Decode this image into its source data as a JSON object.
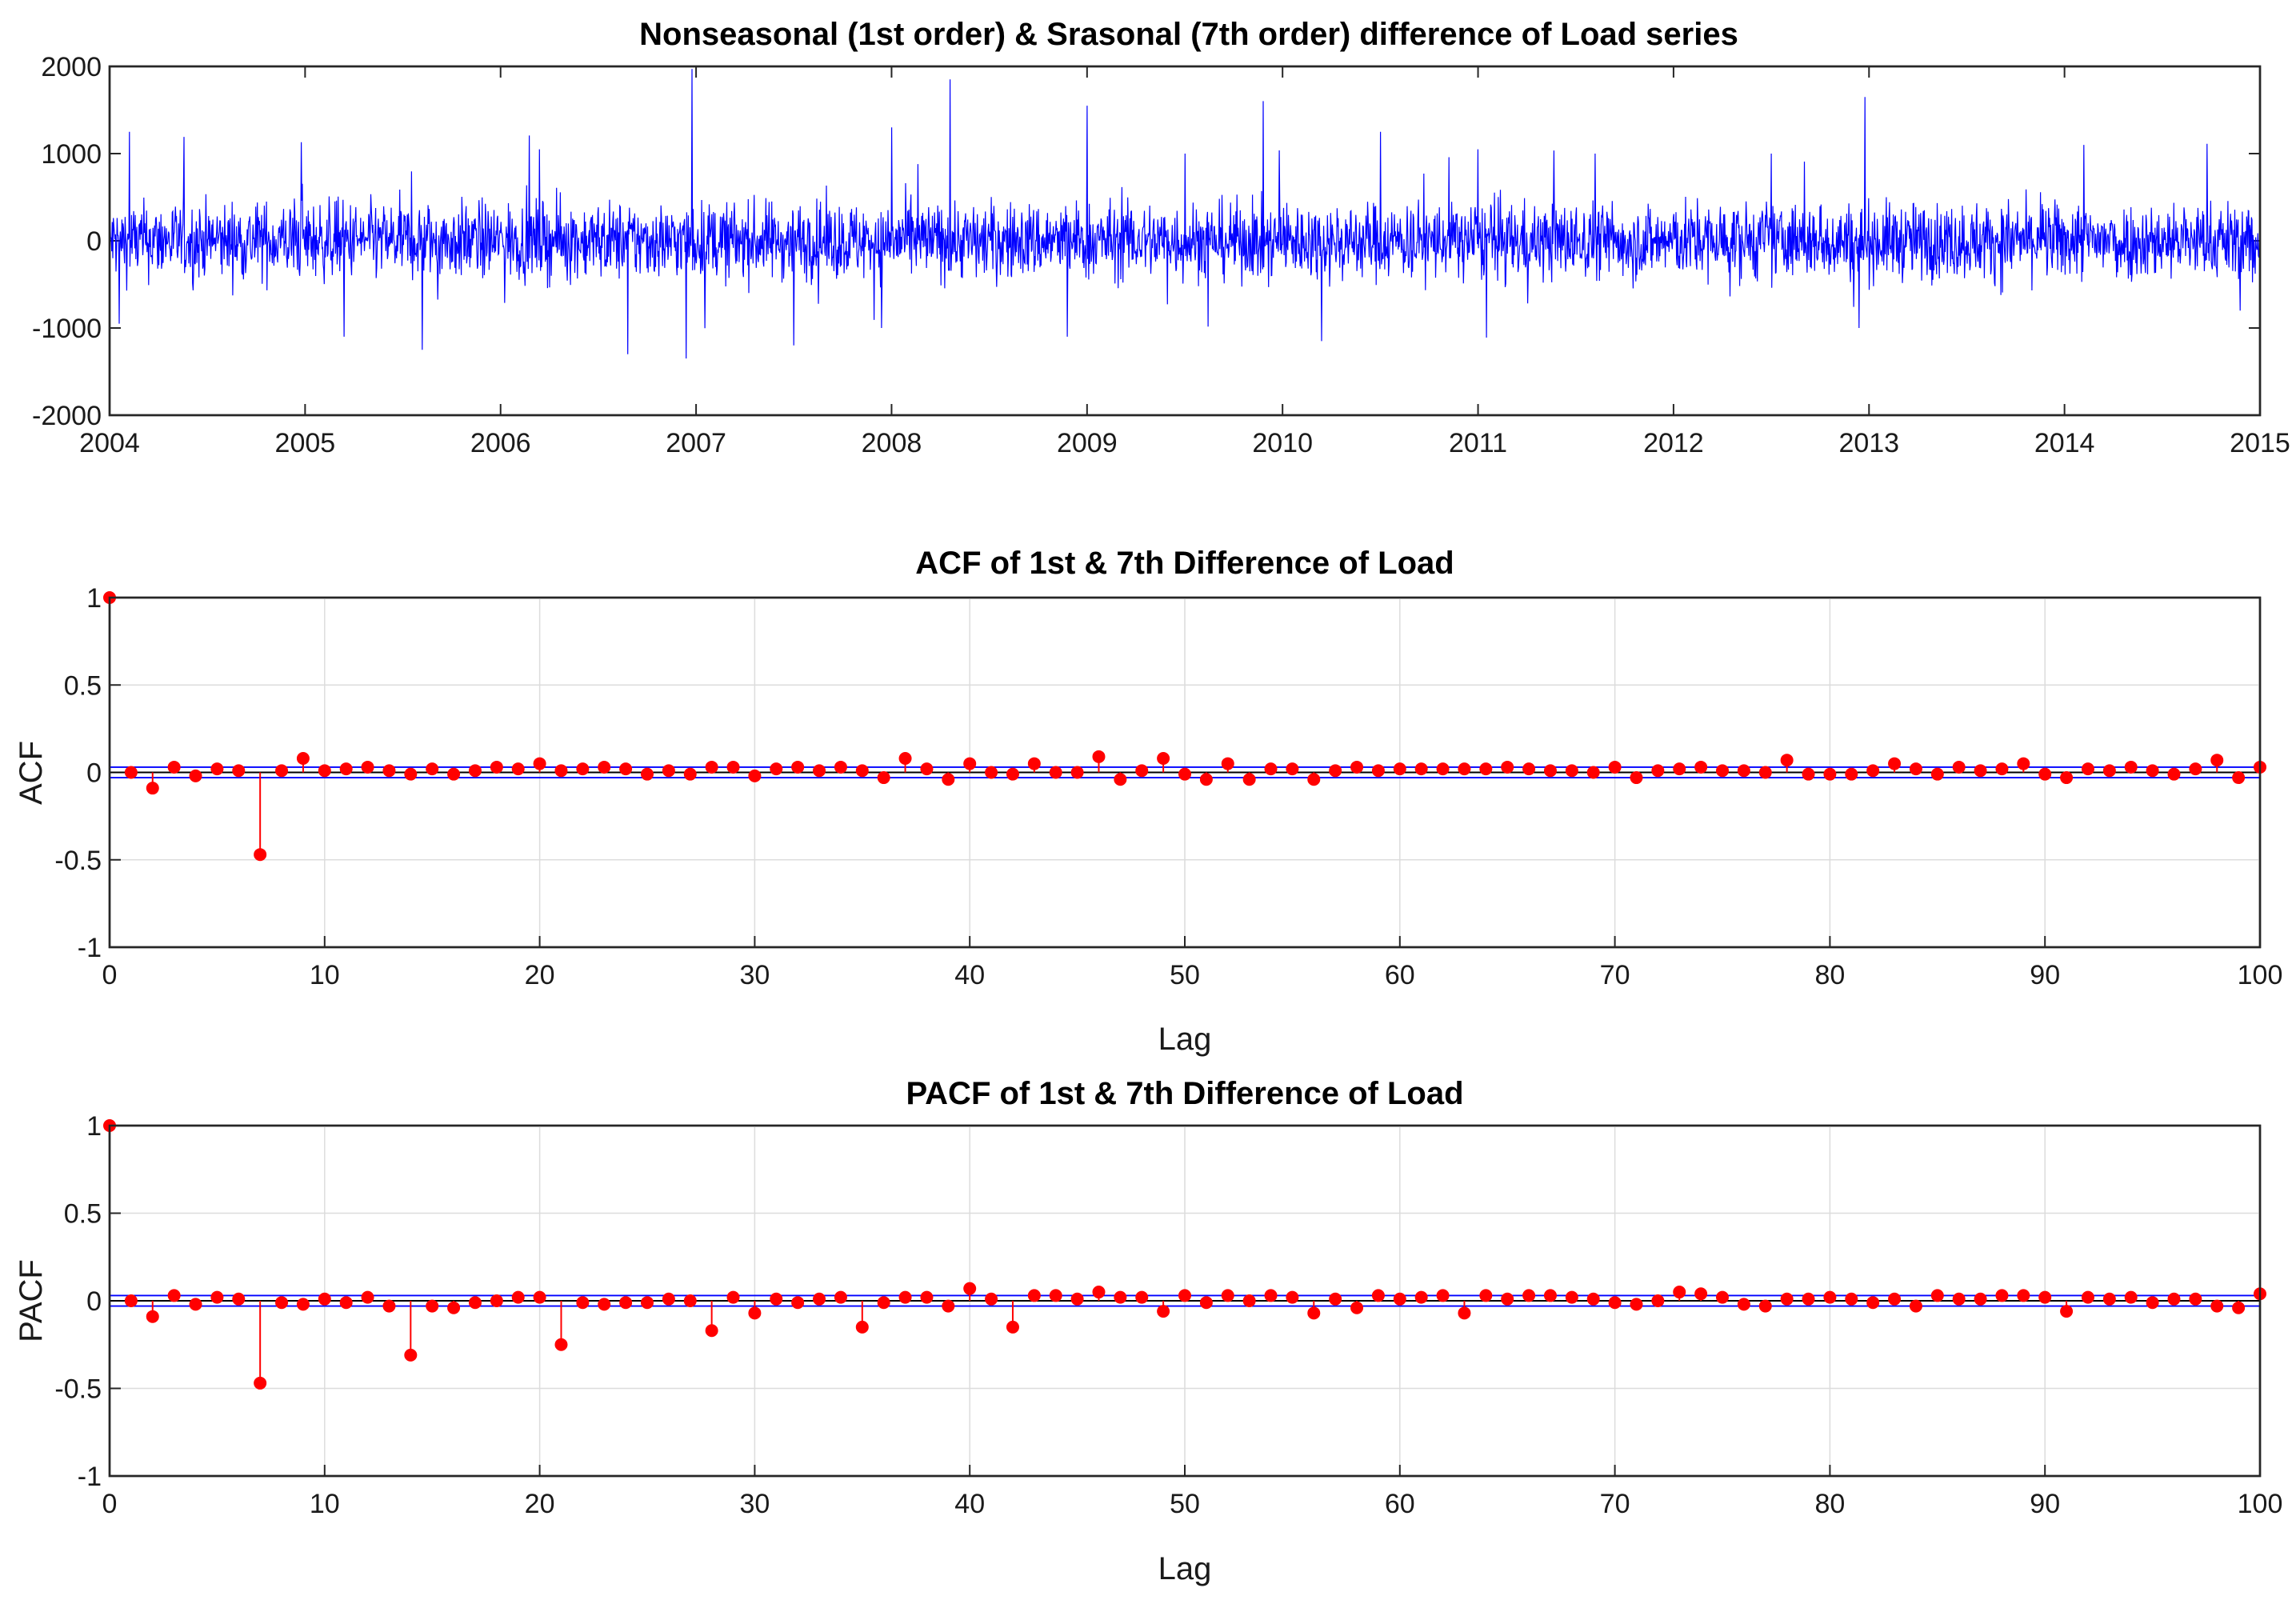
{
  "colors": {
    "series_line": "#0000ff",
    "stem": "#ff0000",
    "zero_line": "#000000",
    "confidence_line": "#0000ff",
    "grid": "#dcdcdc"
  },
  "chart_data": [
    {
      "type": "line",
      "title": "Nonseasonal (1st order) & Srasonal (7th order) difference of Load series",
      "xlabel": "",
      "ylabel": "",
      "x_ticks": [
        "2004",
        "2005",
        "2006",
        "2007",
        "2008",
        "2009",
        "2010",
        "2011",
        "2012",
        "2013",
        "2014",
        "2015"
      ],
      "y_ticks": [
        "-2000",
        "-1000",
        "0",
        "1000",
        "2000"
      ],
      "xlim": [
        2004,
        2015
      ],
      "ylim": [
        -2000,
        2000
      ],
      "grid": false,
      "series": [
        {
          "x_start": 2004,
          "x_end": 2015,
          "sample_count": 4018,
          "typical_amplitude": 220,
          "spikes": [
            {
              "x": 2004.1,
              "y": 1250
            },
            {
              "x": 2004.05,
              "y": -950
            },
            {
              "x": 2004.98,
              "y": 1130
            },
            {
              "x": 2005.2,
              "y": 1230
            },
            {
              "x": 2005.2,
              "y": -1100
            },
            {
              "x": 2005.6,
              "y": 1150
            },
            {
              "x": 2005.6,
              "y": -1250
            },
            {
              "x": 2006.2,
              "y": 1050
            },
            {
              "x": 2006.65,
              "y": -1300
            },
            {
              "x": 2006.98,
              "y": 1970
            },
            {
              "x": 2006.95,
              "y": -1350
            },
            {
              "x": 2007.5,
              "y": 1050
            },
            {
              "x": 2007.5,
              "y": -1200
            },
            {
              "x": 2008.0,
              "y": 1300
            },
            {
              "x": 2008.3,
              "y": 1850
            },
            {
              "x": 2007.95,
              "y": -1000
            },
            {
              "x": 2009.0,
              "y": 1550
            },
            {
              "x": 2008.9,
              "y": -1100
            },
            {
              "x": 2009.5,
              "y": 1000
            },
            {
              "x": 2010.2,
              "y": -1150
            },
            {
              "x": 2010.5,
              "y": 1250
            },
            {
              "x": 2011.0,
              "y": 1050
            },
            {
              "x": 2011.6,
              "y": 1000
            },
            {
              "x": 2012.5,
              "y": 1000
            },
            {
              "x": 2012.98,
              "y": 1650
            },
            {
              "x": 2012.95,
              "y": -1000
            },
            {
              "x": 2014.1,
              "y": 1100
            },
            {
              "x": 2014.9,
              "y": -800
            }
          ]
        }
      ]
    },
    {
      "type": "stem",
      "title": "ACF of 1st & 7th Difference of Load",
      "xlabel": "Lag",
      "ylabel": "ACF",
      "x_ticks": [
        "0",
        "10",
        "20",
        "30",
        "40",
        "50",
        "60",
        "70",
        "80",
        "90",
        "100"
      ],
      "y_ticks": [
        "-1",
        "-0.5",
        "0",
        "0.5",
        "1"
      ],
      "xlim": [
        0,
        100
      ],
      "ylim": [
        -1,
        1
      ],
      "grid": true,
      "confidence_bound": 0.03,
      "lags": [
        0,
        1,
        2,
        3,
        4,
        5,
        6,
        7,
        8,
        9,
        10,
        11,
        12,
        13,
        14,
        15,
        16,
        17,
        18,
        19,
        20,
        21,
        22,
        23,
        24,
        25,
        26,
        27,
        28,
        29,
        30,
        31,
        32,
        33,
        34,
        35,
        36,
        37,
        38,
        39,
        40,
        41,
        42,
        43,
        44,
        45,
        46,
        47,
        48,
        49,
        50,
        51,
        52,
        53,
        54,
        55,
        56,
        57,
        58,
        59,
        60,
        61,
        62,
        63,
        64,
        65,
        66,
        67,
        68,
        69,
        70,
        71,
        72,
        73,
        74,
        75,
        76,
        77,
        78,
        79,
        80,
        81,
        82,
        83,
        84,
        85,
        86,
        87,
        88,
        89,
        90,
        91,
        92,
        93,
        94,
        95,
        96,
        97,
        98,
        99,
        100
      ],
      "values": [
        1.0,
        0.0,
        -0.09,
        0.03,
        -0.02,
        0.02,
        0.01,
        -0.47,
        0.01,
        0.08,
        0.01,
        0.02,
        0.03,
        0.01,
        -0.01,
        0.02,
        -0.01,
        0.01,
        0.03,
        0.02,
        0.05,
        0.01,
        0.02,
        0.03,
        0.02,
        -0.01,
        0.01,
        -0.01,
        0.03,
        0.03,
        -0.02,
        0.02,
        0.03,
        0.01,
        0.03,
        0.01,
        -0.03,
        0.08,
        0.02,
        -0.04,
        0.05,
        0.0,
        -0.01,
        0.05,
        0.0,
        0.0,
        0.09,
        -0.04,
        0.01,
        0.08,
        -0.01,
        -0.04,
        0.05,
        -0.04,
        0.02,
        0.02,
        -0.04,
        0.01,
        0.03,
        0.01,
        0.02,
        0.02,
        0.02,
        0.02,
        0.02,
        0.03,
        0.02,
        0.01,
        0.01,
        0.0,
        0.03,
        -0.03,
        0.01,
        0.02,
        0.03,
        0.01,
        0.01,
        0.0,
        0.07,
        -0.01,
        -0.01,
        -0.01,
        0.01,
        0.05,
        0.02,
        -0.01,
        0.03,
        0.01,
        0.02,
        0.05,
        -0.01,
        -0.03,
        0.02,
        0.01,
        0.03,
        0.01,
        -0.01,
        0.02,
        0.07,
        -0.03,
        0.03
      ]
    },
    {
      "type": "stem",
      "title": "PACF of 1st & 7th Difference of Load",
      "xlabel": "Lag",
      "ylabel": "PACF",
      "x_ticks": [
        "0",
        "10",
        "20",
        "30",
        "40",
        "50",
        "60",
        "70",
        "80",
        "90",
        "100"
      ],
      "y_ticks": [
        "-1",
        "-0.5",
        "0",
        "0.5",
        "1"
      ],
      "xlim": [
        0,
        100
      ],
      "ylim": [
        -1,
        1
      ],
      "grid": true,
      "confidence_bound": 0.03,
      "lags": [
        0,
        1,
        2,
        3,
        4,
        5,
        6,
        7,
        8,
        9,
        10,
        11,
        12,
        13,
        14,
        15,
        16,
        17,
        18,
        19,
        20,
        21,
        22,
        23,
        24,
        25,
        26,
        27,
        28,
        29,
        30,
        31,
        32,
        33,
        34,
        35,
        36,
        37,
        38,
        39,
        40,
        41,
        42,
        43,
        44,
        45,
        46,
        47,
        48,
        49,
        50,
        51,
        52,
        53,
        54,
        55,
        56,
        57,
        58,
        59,
        60,
        61,
        62,
        63,
        64,
        65,
        66,
        67,
        68,
        69,
        70,
        71,
        72,
        73,
        74,
        75,
        76,
        77,
        78,
        79,
        80,
        81,
        82,
        83,
        84,
        85,
        86,
        87,
        88,
        89,
        90,
        91,
        92,
        93,
        94,
        95,
        96,
        97,
        98,
        99,
        100
      ],
      "values": [
        1.0,
        0.0,
        -0.09,
        0.03,
        -0.02,
        0.02,
        0.01,
        -0.47,
        -0.01,
        -0.02,
        0.01,
        -0.01,
        0.02,
        -0.03,
        -0.31,
        -0.03,
        -0.04,
        -0.01,
        0.0,
        0.02,
        0.02,
        -0.25,
        -0.01,
        -0.02,
        -0.01,
        -0.01,
        0.01,
        0.0,
        -0.17,
        0.02,
        -0.07,
        0.01,
        -0.01,
        0.01,
        0.02,
        -0.15,
        -0.01,
        0.02,
        0.02,
        -0.03,
        0.07,
        0.01,
        -0.15,
        0.03,
        0.03,
        0.01,
        0.05,
        0.02,
        0.02,
        -0.06,
        0.03,
        -0.01,
        0.03,
        0.0,
        0.03,
        0.02,
        -0.07,
        0.01,
        -0.04,
        0.03,
        0.01,
        0.02,
        0.03,
        -0.07,
        0.03,
        0.01,
        0.03,
        0.03,
        0.02,
        0.01,
        -0.01,
        -0.02,
        0.0,
        0.05,
        0.04,
        0.02,
        -0.02,
        -0.03,
        0.01,
        0.01,
        0.02,
        0.01,
        -0.01,
        0.01,
        -0.03,
        0.03,
        0.01,
        0.01,
        0.03,
        0.03,
        0.02,
        -0.06,
        0.02,
        0.01,
        0.02,
        -0.01,
        0.01,
        0.01,
        -0.03,
        -0.04,
        0.04
      ]
    }
  ]
}
